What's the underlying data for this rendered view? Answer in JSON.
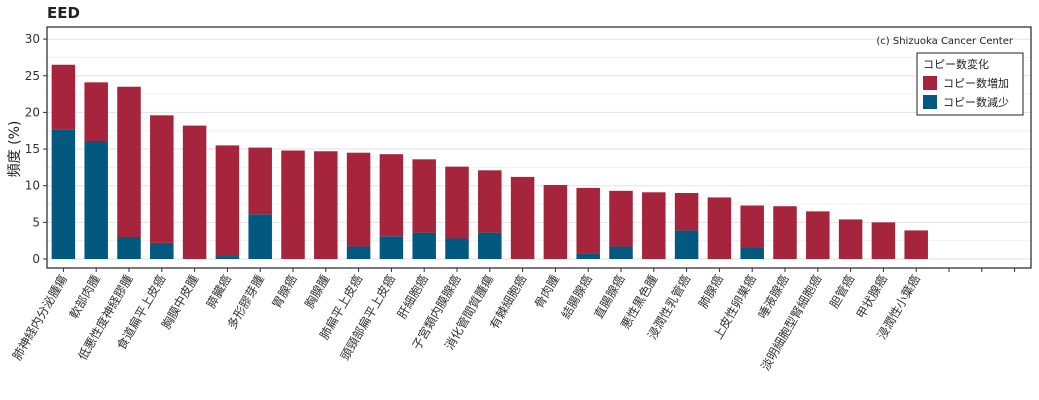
{
  "chart_data": {
    "type": "bar",
    "stacked": true,
    "title": "EED",
    "ylabel": "頻度 (%)",
    "xlabel": "",
    "ylim": [
      0,
      31
    ],
    "yticks": [
      0,
      5,
      10,
      15,
      20,
      25,
      30
    ],
    "grid": true,
    "credit": "(c) Shizuoka Cancer Center",
    "legend": {
      "title": "コピー数変化",
      "position": "top-right",
      "entries": [
        {
          "label": "コピー数増加",
          "color": "#a6243c"
        },
        {
          "label": "コピー数減少",
          "color": "#02587f"
        }
      ]
    },
    "categories": [
      "肺神経内分泌腫瘍",
      "軟部肉腫",
      "低悪性度神経膠腫",
      "食道扁平上皮癌",
      "胸膜中皮腫",
      "膵臓癌",
      "多形膠芽腫",
      "胃腺癌",
      "胸腺腫",
      "肺扁平上皮癌",
      "頭頸部扁平上皮癌",
      "肝細胞癌",
      "子宮類内膜腺癌",
      "消化管間質腫瘍",
      "有棘細胞癌",
      "骨肉腫",
      "結腸腺癌",
      "直腸腺癌",
      "悪性黒色腫",
      "浸潤性乳管癌",
      "肺腺癌",
      "上皮性卵巣癌",
      "唾液腺癌",
      "淡明細胞型腎細胞癌",
      "胆管癌",
      "甲状腺癌",
      "浸潤性小葉癌"
    ],
    "series": [
      {
        "name": "コピー数減少",
        "color": "#02587f",
        "values": [
          17.7,
          16.1,
          3.0,
          2.2,
          0,
          0.4,
          6.1,
          0,
          0,
          1.7,
          3.1,
          3.6,
          2.8,
          3.6,
          0,
          0,
          0.8,
          1.7,
          0,
          3.9,
          0,
          1.5,
          0,
          0,
          0,
          0,
          0
        ]
      },
      {
        "name": "コピー数増加",
        "color": "#a6243c",
        "values": [
          8.8,
          8.0,
          20.5,
          17.4,
          18.2,
          15.1,
          9.1,
          14.8,
          14.7,
          12.8,
          11.2,
          10.0,
          9.8,
          8.5,
          11.2,
          10.1,
          8.9,
          7.6,
          9.1,
          5.1,
          8.4,
          5.8,
          7.2,
          6.5,
          5.4,
          5.0,
          3.9
        ]
      }
    ],
    "empty_slots": 3
  }
}
